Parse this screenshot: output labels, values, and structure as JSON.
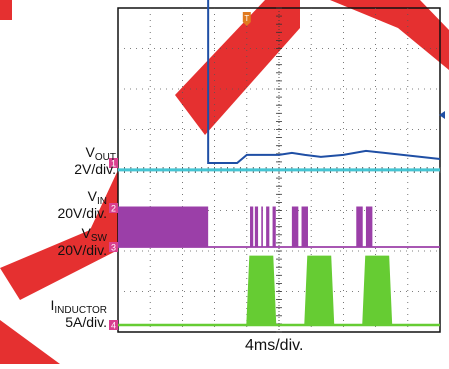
{
  "chart_data": {
    "type": "line",
    "title": "",
    "xlabel": "4ms/div.",
    "time_per_div_ms": 4,
    "x_range_ms": [
      -16,
      24
    ],
    "trigger_time_ms": 0,
    "trigger_marker": "T",
    "grid": true,
    "grid_divisions": {
      "x": 10,
      "y": 8
    },
    "colors": {
      "vout": "#1f4fa5",
      "vin": "#45c5d3",
      "vsw": "#9b3fa8",
      "inductor": "#66cc33",
      "channel_marker": "#d9408f",
      "trigger_marker": "#e07a1f",
      "watermark": "#e53030"
    },
    "series": [
      {
        "name_main": "V",
        "name_sub": "OUT",
        "scale": "2V/div.",
        "channel": "1",
        "key": "vout",
        "points_ms_div": [
          [
            -16,
            4.4
          ],
          [
            -4.8,
            4.4
          ],
          [
            -4.8,
            0
          ],
          [
            -3.6,
            0
          ],
          [
            -1.2,
            0
          ],
          [
            0,
            0.2
          ],
          [
            4,
            0.2
          ],
          [
            5.6,
            0.25
          ],
          [
            7.2,
            0.2
          ],
          [
            9.2,
            0.15
          ],
          [
            12,
            0.2
          ],
          [
            14.8,
            0.3
          ],
          [
            24,
            0.1
          ]
        ]
      },
      {
        "name_main": "V",
        "name_sub": "IN",
        "scale": "20V/div.",
        "channel": "2",
        "key": "vin",
        "points_ms_div": [
          [
            -16,
            0.35
          ],
          [
            24,
            0.35
          ]
        ]
      },
      {
        "name_main": "V",
        "name_sub": "SW",
        "scale": "20V/div.",
        "channel": "3",
        "key": "vsw",
        "switching_bursts_ms": [
          [
            -16,
            -4.8
          ],
          [
            0.4,
            0.8
          ],
          [
            1.0,
            1.4
          ],
          [
            1.8,
            2.0
          ],
          [
            2.4,
            2.8
          ],
          [
            3.2,
            3.6
          ],
          [
            5.6,
            6.4
          ],
          [
            6.8,
            7.6
          ],
          [
            13.6,
            14.4
          ],
          [
            14.8,
            15.6
          ]
        ],
        "high_div": 1.0
      },
      {
        "name_main": "I",
        "name_sub": "INDUCTOR",
        "scale": "5A/div.",
        "channel": "4",
        "key": "inductor",
        "current_bursts_ms": [
          [
            0,
            3.6
          ],
          [
            7.2,
            10.8
          ],
          [
            14.4,
            18.0
          ]
        ],
        "high_div": 1.7
      }
    ]
  }
}
